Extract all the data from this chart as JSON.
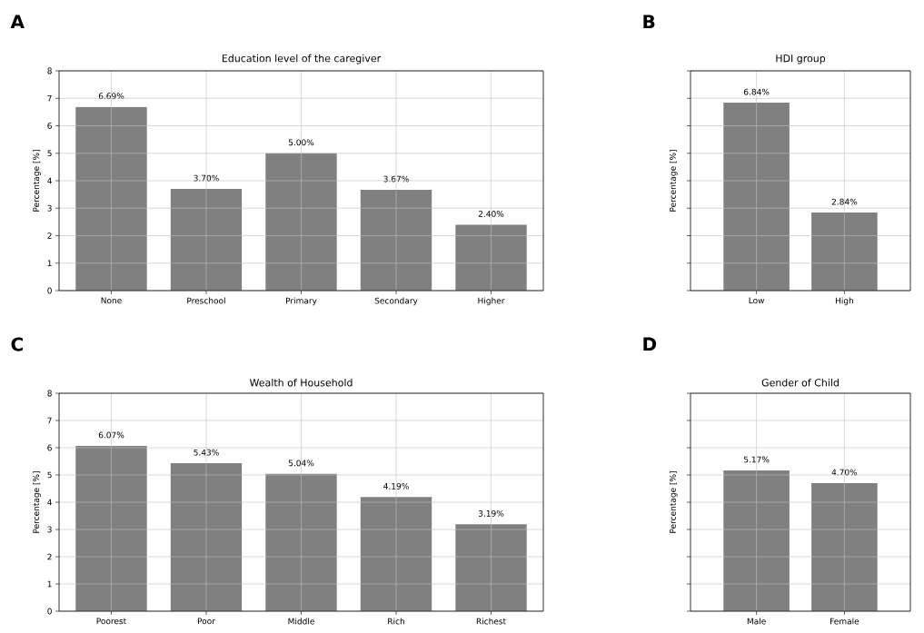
{
  "chart_data": [
    {
      "type": "bar",
      "title": "Education level of the caregiver",
      "ylabel": "Percentage [%]",
      "annotations": [
        "A"
      ],
      "categories": [
        "None",
        "Preschool",
        "Primary",
        "Secondary",
        "Higher"
      ],
      "values": [
        6.69,
        3.7,
        5.0,
        3.67,
        2.4
      ],
      "value_labels": [
        "6.69%",
        "3.70%",
        "5.00%",
        "3.67%",
        "2.40%"
      ],
      "color": "#808080",
      "ylim": [
        0,
        8
      ],
      "yticks": [
        0,
        1,
        2,
        3,
        4,
        5,
        6,
        7,
        8
      ],
      "grid": true
    },
    {
      "type": "bar",
      "title": "HDI group",
      "ylabel": "Percentage [%]",
      "annotations": [
        "B"
      ],
      "categories": [
        "Low",
        "High"
      ],
      "values": [
        6.84,
        2.84
      ],
      "value_labels": [
        "6.84%",
        "2.84%"
      ],
      "color": "#808080",
      "ylim": [
        0,
        8
      ],
      "yticks": [
        {
          "value": 0,
          "label": null
        },
        {
          "value": 1,
          "label": null
        },
        {
          "value": 2,
          "label": null
        },
        {
          "value": 3,
          "label": null
        },
        {
          "value": 4,
          "label": null
        },
        {
          "value": 5,
          "label": null
        },
        {
          "value": 6,
          "label": null
        },
        {
          "value": 7,
          "label": null
        },
        {
          "value": 8,
          "label": null
        }
      ],
      "tick_labels": "x",
      "grid": true
    },
    {
      "type": "bar",
      "title": "Wealth of Household",
      "ylabel": "Percentage [%]",
      "annotations": [
        "C"
      ],
      "categories": [
        "Poorest",
        "Poor",
        "Middle",
        "Rich",
        "Richest"
      ],
      "values": [
        6.07,
        5.43,
        5.04,
        4.19,
        3.19
      ],
      "value_labels": [
        "6.07%",
        "5.43%",
        "5.04%",
        "4.19%",
        "3.19%"
      ],
      "color": "#808080",
      "ylim": [
        0,
        8
      ],
      "yticks": [
        0,
        1,
        2,
        3,
        4,
        5,
        6,
        7,
        8
      ],
      "grid": true
    },
    {
      "type": "bar",
      "title": "Gender of Child",
      "ylabel": "Percentage [%]",
      "annotations": [
        "D"
      ],
      "categories": [
        "Male",
        "Female"
      ],
      "values": [
        5.17,
        4.7
      ],
      "value_labels": [
        "5.17%",
        "4.70%"
      ],
      "color": "#808080",
      "ylim": [
        0,
        8
      ],
      "yticks": [
        {
          "value": 0,
          "label": null
        },
        {
          "value": 1,
          "label": null
        },
        {
          "value": 2,
          "label": null
        },
        {
          "value": 3,
          "label": null
        },
        {
          "value": 4,
          "label": null
        },
        {
          "value": 5,
          "label": null
        },
        {
          "value": 6,
          "label": null
        },
        {
          "value": 7,
          "label": null
        },
        {
          "value": 8,
          "label": null
        }
      ],
      "tick_labels": "x",
      "grid": true
    }
  ]
}
